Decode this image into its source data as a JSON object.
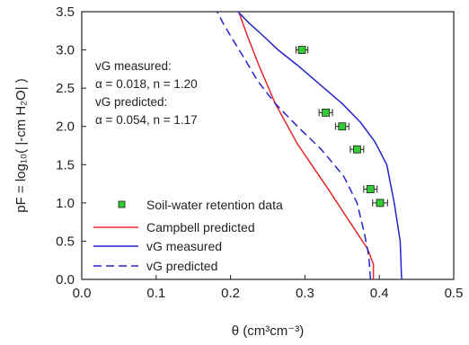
{
  "chart_data": {
    "type": "line",
    "xlabel": "θ (cm³cm⁻³)",
    "ylabel": "pF = log₁₀( |-cm H₂O| )",
    "xlim": [
      0.0,
      0.5
    ],
    "ylim": [
      0.0,
      3.5
    ],
    "x_ticks": [
      "0.0",
      "0.1",
      "0.2",
      "0.3",
      "0.4",
      "0.5"
    ],
    "y_ticks": [
      "0.0",
      "0.5",
      "1.0",
      "1.5",
      "2.0",
      "2.5",
      "3.0",
      "3.5"
    ],
    "grid": false,
    "legend_position": "bottom-center",
    "annotations": [
      "vG measured:",
      "α = 0.018, n = 1.20",
      "vG predicted:",
      "α = 0.054, n = 1.17"
    ],
    "series": [
      {
        "name": "Soil-water retention data",
        "kind": "scatter",
        "color": "#33cc33",
        "points": [
          {
            "x": 0.296,
            "y": 3.0,
            "err": 0.008
          },
          {
            "x": 0.328,
            "y": 2.18,
            "err": 0.009
          },
          {
            "x": 0.35,
            "y": 2.0,
            "err": 0.009
          },
          {
            "x": 0.37,
            "y": 1.7,
            "err": 0.009
          },
          {
            "x": 0.388,
            "y": 1.18,
            "err": 0.009
          },
          {
            "x": 0.401,
            "y": 1.0,
            "err": 0.01
          }
        ]
      },
      {
        "name": "Campbell predicted",
        "kind": "line",
        "color": "#e8272a",
        "dash": "solid",
        "x": [
          0.392,
          0.392,
          0.384,
          0.33,
          0.29,
          0.26,
          0.238,
          0.222,
          0.211
        ],
        "y": [
          0.0,
          0.2,
          0.4,
          1.2,
          1.77,
          2.3,
          2.8,
          3.2,
          3.5
        ]
      },
      {
        "name": "vG measured",
        "kind": "line",
        "color": "#2323cc",
        "dash": "solid",
        "x": [
          0.43,
          0.428,
          0.42,
          0.41,
          0.394,
          0.375,
          0.35,
          0.32,
          0.29,
          0.264,
          0.242,
          0.225,
          0.21
        ],
        "y": [
          0.0,
          0.5,
          1.0,
          1.5,
          1.8,
          2.05,
          2.3,
          2.55,
          2.8,
          3.0,
          3.2,
          3.35,
          3.5
        ]
      },
      {
        "name": "vG predicted",
        "kind": "line",
        "color": "#2323cc",
        "dash": "dashed",
        "x": [
          0.388,
          0.386,
          0.38,
          0.37,
          0.352,
          0.322,
          0.29,
          0.26,
          0.236,
          0.218,
          0.202,
          0.19,
          0.182
        ],
        "y": [
          0.0,
          0.3,
          0.6,
          1.0,
          1.35,
          1.7,
          2.0,
          2.3,
          2.6,
          2.9,
          3.15,
          3.35,
          3.5
        ]
      }
    ]
  }
}
